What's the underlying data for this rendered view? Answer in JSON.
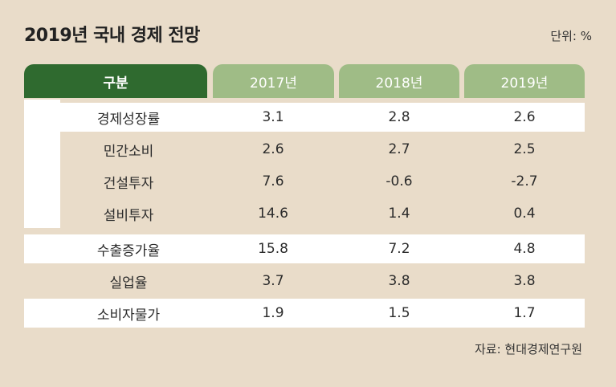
{
  "title": "2019년 국내 경제 전망",
  "unit": "단위: %",
  "source": "자료: 현대경제연구원",
  "chart_data": {
    "type": "table",
    "columns": [
      "구분",
      "2017년",
      "2018년",
      "2019년"
    ],
    "rows": [
      {
        "label": "경제성장률",
        "values": [
          "3.1",
          "2.8",
          "2.6"
        ]
      },
      {
        "label": "민간소비",
        "values": [
          "2.6",
          "2.7",
          "2.5"
        ]
      },
      {
        "label": "건설투자",
        "values": [
          "7.6",
          "-0.6",
          "-2.7"
        ]
      },
      {
        "label": "설비투자",
        "values": [
          "14.6",
          "1.4",
          "0.4"
        ]
      },
      {
        "label": "수출증가율",
        "values": [
          "15.8",
          "7.2",
          "4.8"
        ]
      },
      {
        "label": "실업율",
        "values": [
          "3.7",
          "3.8",
          "3.8"
        ]
      },
      {
        "label": "소비자물가",
        "values": [
          "1.9",
          "1.5",
          "1.7"
        ]
      }
    ]
  },
  "colors": {
    "background": "#e9dcc9",
    "header_dark_green": "#2f6a2f",
    "header_light_green": "#9fbc86",
    "row_white": "#ffffff"
  }
}
